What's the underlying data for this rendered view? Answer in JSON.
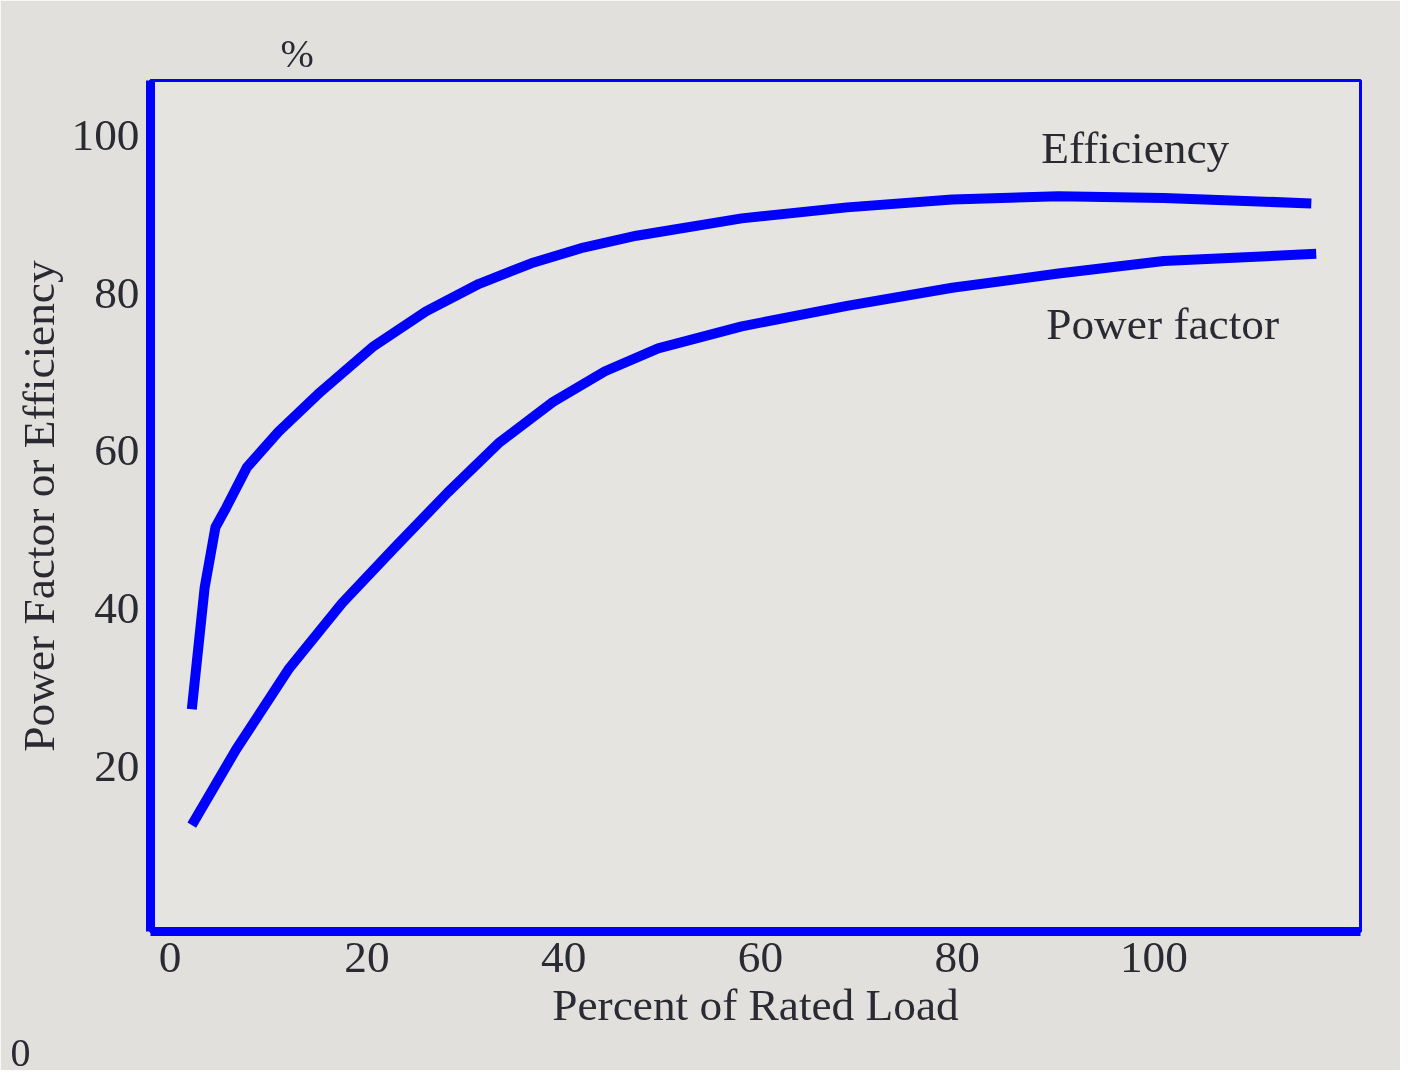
{
  "chart_data": {
    "type": "line",
    "xlabel": "Percent of Rated Load",
    "ylabel": "Power Factor or Efficiency",
    "xlim": [
      -2,
      121
    ],
    "ylim": [
      -1,
      107
    ],
    "xticks": [
      0,
      20,
      40,
      60,
      80,
      100
    ],
    "yticks": [
      20,
      40,
      60,
      80,
      100
    ],
    "grid": false,
    "marker": "none",
    "line_style": "solid",
    "annotations": [
      "%",
      "0"
    ],
    "series": [
      {
        "name": "Efficiency",
        "color": "#0000ff",
        "x": [
          2.2,
          3.5,
          4.6,
          5.7,
          7.8,
          11,
          15.3,
          20.7,
          26,
          31.4,
          36.7,
          42,
          47.4,
          58.1,
          68.8,
          79.5,
          90.3,
          101,
          116
        ],
        "values": [
          27.2,
          42.6,
          50.3,
          52.8,
          57.9,
          62.4,
          67.5,
          73.3,
          77.7,
          81.2,
          83.8,
          85.8,
          87.3,
          89.5,
          90.9,
          91.9,
          92.3,
          92.1,
          91.4
        ]
      },
      {
        "name": "Power factor",
        "color": "#0000ff",
        "x": [
          2.2,
          6.7,
          12.1,
          17.5,
          22.8,
          28.2,
          33.5,
          38.9,
          44.2,
          49.6,
          58.1,
          68.8,
          79.5,
          90.3,
          101,
          116.5
        ],
        "values": [
          12.5,
          22.1,
          32.4,
          40.7,
          47.7,
          54.7,
          61.1,
          66.2,
          70.1,
          73,
          75.8,
          78.4,
          80.7,
          82.5,
          84.1,
          85
        ]
      }
    ]
  }
}
